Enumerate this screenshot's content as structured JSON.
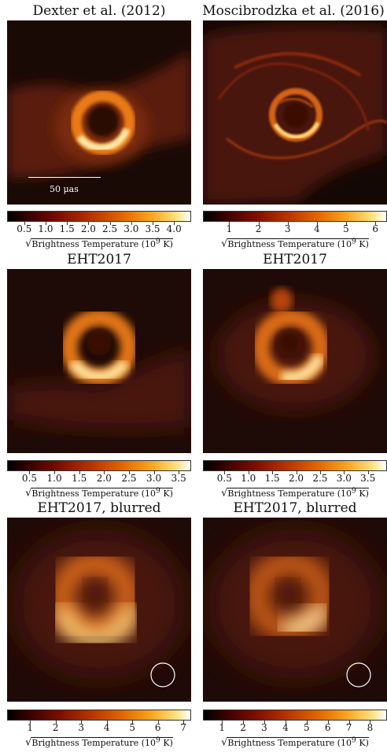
{
  "colors": {
    "bg_dark": "#1a0a06",
    "colormap": "afmhot"
  },
  "panels": [
    {
      "title": "Dexter et al. (2012)"
    },
    {
      "title": "Moscibrodzka et al. (2016)"
    },
    {
      "title": "EHT2017"
    },
    {
      "title": "EHT2017"
    },
    {
      "title": "EHT2017, blurred"
    },
    {
      "title": "EHT2017, blurred"
    }
  ],
  "scale_bar": {
    "label": "50 μas"
  },
  "colorbars": [
    {
      "ticks": [
        "0.5",
        "1.0",
        "1.5",
        "2.0",
        "2.5",
        "3.0",
        "3.5",
        "4.0"
      ],
      "tick_values": [
        0.5,
        1.0,
        1.5,
        2.0,
        2.5,
        3.0,
        3.5,
        4.0
      ],
      "range": [
        0.1,
        4.4
      ]
    },
    {
      "ticks": [
        "1",
        "2",
        "3",
        "4",
        "5",
        "6"
      ],
      "tick_values": [
        1,
        2,
        3,
        4,
        5,
        6
      ],
      "range": [
        0.1,
        6.4
      ]
    },
    {
      "ticks": [
        "0.5",
        "1.0",
        "1.5",
        "2.0",
        "2.5",
        "3.0",
        "3.5"
      ],
      "tick_values": [
        0.5,
        1.0,
        1.5,
        2.0,
        2.5,
        3.0,
        3.5
      ],
      "range": [
        0.05,
        3.75
      ]
    },
    {
      "ticks": [
        "0.5",
        "1.0",
        "1.5",
        "2.0",
        "2.5",
        "3.0",
        "3.5"
      ],
      "tick_values": [
        0.5,
        1.0,
        1.5,
        2.0,
        2.5,
        3.0,
        3.5
      ],
      "range": [
        0.05,
        3.9
      ]
    },
    {
      "ticks": [
        "1",
        "2",
        "3",
        "4",
        "5",
        "6",
        "7"
      ],
      "tick_values": [
        1,
        2,
        3,
        4,
        5,
        6,
        7
      ],
      "range": [
        0.1,
        7.3
      ]
    },
    {
      "ticks": [
        "1",
        "2",
        "3",
        "4",
        "5",
        "6",
        "7",
        "8"
      ],
      "tick_values": [
        1,
        2,
        3,
        4,
        5,
        6,
        7,
        8
      ],
      "range": [
        0.1,
        8.8
      ]
    }
  ],
  "colorbar_label": {
    "sqrt": "√",
    "text": "Brightness Temperature (10",
    "exp": "9",
    "unit": " K)"
  }
}
